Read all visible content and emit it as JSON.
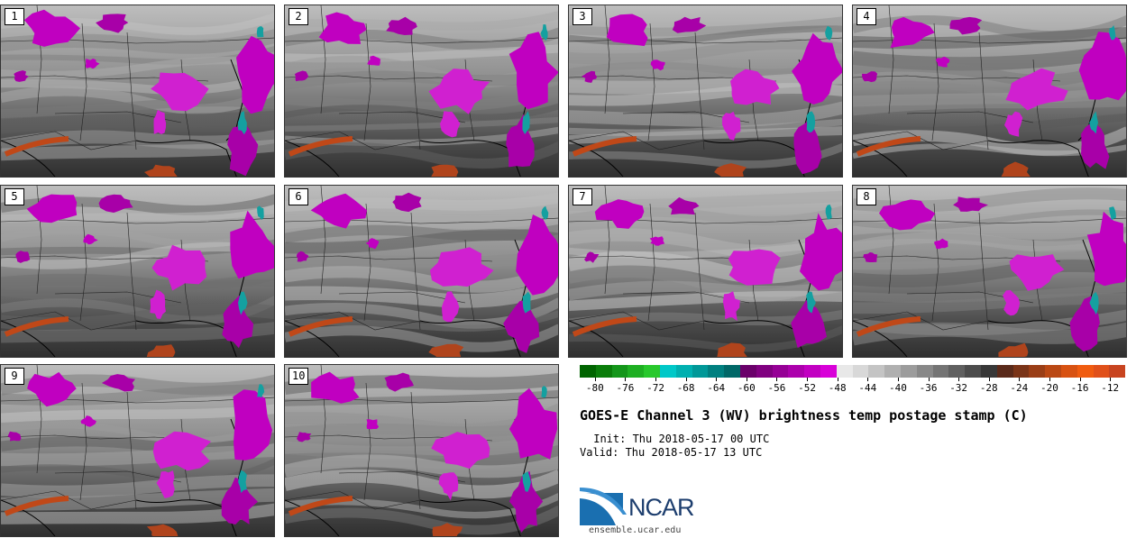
{
  "panels": [
    {
      "label": "1"
    },
    {
      "label": "2"
    },
    {
      "label": "3"
    },
    {
      "label": "4"
    },
    {
      "label": "5"
    },
    {
      "label": "6"
    },
    {
      "label": "7"
    },
    {
      "label": "8"
    },
    {
      "label": "9"
    },
    {
      "label": "10"
    }
  ],
  "colorbar": {
    "tick_labels": [
      "-80",
      "-76",
      "-72",
      "-68",
      "-64",
      "-60",
      "-56",
      "-52",
      "-48",
      "-44",
      "-40",
      "-36",
      "-32",
      "-28",
      "-24",
      "-20",
      "-16",
      "-12"
    ],
    "colors": [
      "#006400",
      "#0a7d0a",
      "#14961a",
      "#1eaf22",
      "#28c82c",
      "#00c8c8",
      "#00b0b0",
      "#009898",
      "#008080",
      "#006868",
      "#6a006a",
      "#800080",
      "#960096",
      "#ac00ac",
      "#c200c2",
      "#d800d8",
      "#e8e8e8",
      "#d8d8d8",
      "#c4c4c4",
      "#b0b0b0",
      "#9c9c9c",
      "#888888",
      "#747474",
      "#606060",
      "#4c4c4c",
      "#383838",
      "#5a2a1a",
      "#7a3418",
      "#9a3e16",
      "#ba4814",
      "#d85212",
      "#f05c10",
      "#e0501a",
      "#c84420"
    ]
  },
  "title": "GOES-E Channel 3 (WV) brightness temp postage stamp (C)",
  "init": " Init: Thu 2018-05-17 00 UTC",
  "valid": "Valid: Thu 2018-05-17 13 UTC",
  "logo": {
    "text": "NCAR",
    "url": "ensemble.ucar.edu"
  }
}
